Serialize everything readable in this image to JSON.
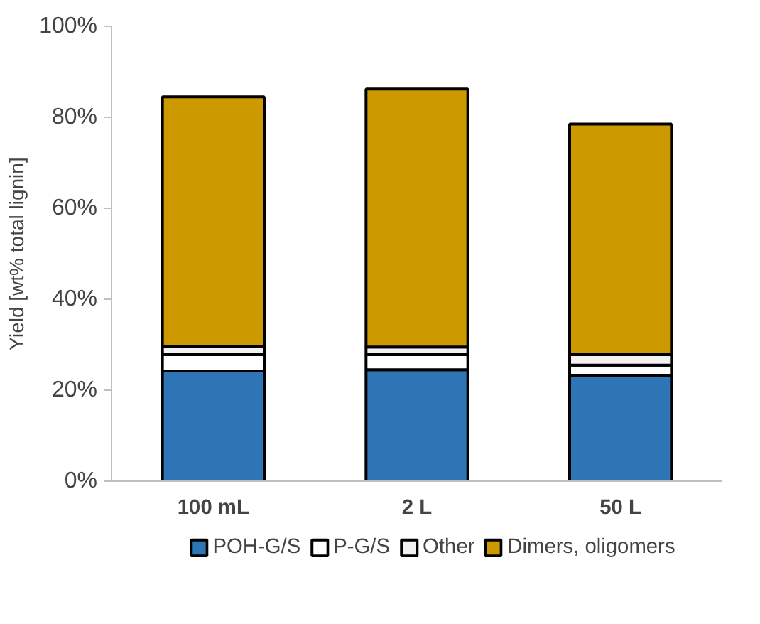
{
  "chart_data": {
    "type": "bar",
    "stacked": true,
    "ylabel": "Yield [wt% total lignin]",
    "categories": [
      "100 mL",
      "2 L",
      "50 L"
    ],
    "series": [
      {
        "name": "POH-G/S",
        "color": "#2e75b6",
        "values": [
          24.2,
          24.5,
          23.3
        ]
      },
      {
        "name": "P-G/S",
        "color": "#ffffff",
        "values": [
          3.6,
          3.3,
          2.2
        ]
      },
      {
        "name": "Other",
        "color": "#f2f2f2",
        "values": [
          1.8,
          1.7,
          2.3
        ]
      },
      {
        "name": "Dimers, oligomers",
        "color": "#cc9900",
        "values": [
          54.9,
          56.7,
          50.7
        ]
      }
    ],
    "ylim": [
      0,
      100
    ],
    "yticks": [
      {
        "value": 0,
        "label": "0%"
      },
      {
        "value": 20,
        "label": "20%"
      },
      {
        "value": 40,
        "label": "40%"
      },
      {
        "value": 60,
        "label": "60%"
      },
      {
        "value": 80,
        "label": "80%"
      },
      {
        "value": 100,
        "label": "100%"
      }
    ],
    "grid": false,
    "legend": "bottom"
  }
}
